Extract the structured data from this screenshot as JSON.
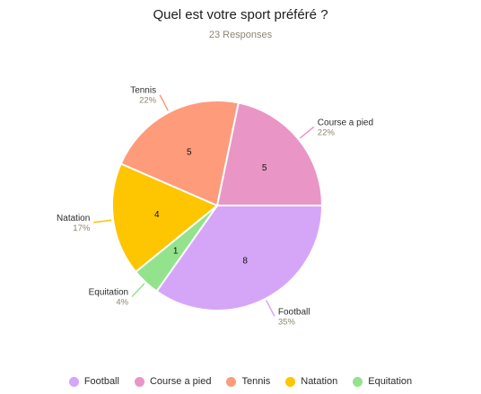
{
  "chart_data": {
    "type": "pie",
    "title": "Quel est votre sport préféré ?",
    "subtitle": "23 Responses",
    "legend_position": "bottom",
    "slices": [
      {
        "label": "Football",
        "value": 8,
        "percent_label": "35%",
        "color": "#d5a6f7"
      },
      {
        "label": "Equitation",
        "value": 1,
        "percent_label": "4%",
        "color": "#93e38c"
      },
      {
        "label": "Natation",
        "value": 4,
        "percent_label": "17%",
        "color": "#fec501"
      },
      {
        "label": "Tennis",
        "value": 5,
        "percent_label": "22%",
        "color": "#fe9b7b"
      },
      {
        "label": "Course a pied",
        "value": 5,
        "percent_label": "22%",
        "color": "#e996c6"
      }
    ],
    "legend_order": [
      "Football",
      "Course a pied",
      "Tennis",
      "Natation",
      "Equitation"
    ]
  }
}
